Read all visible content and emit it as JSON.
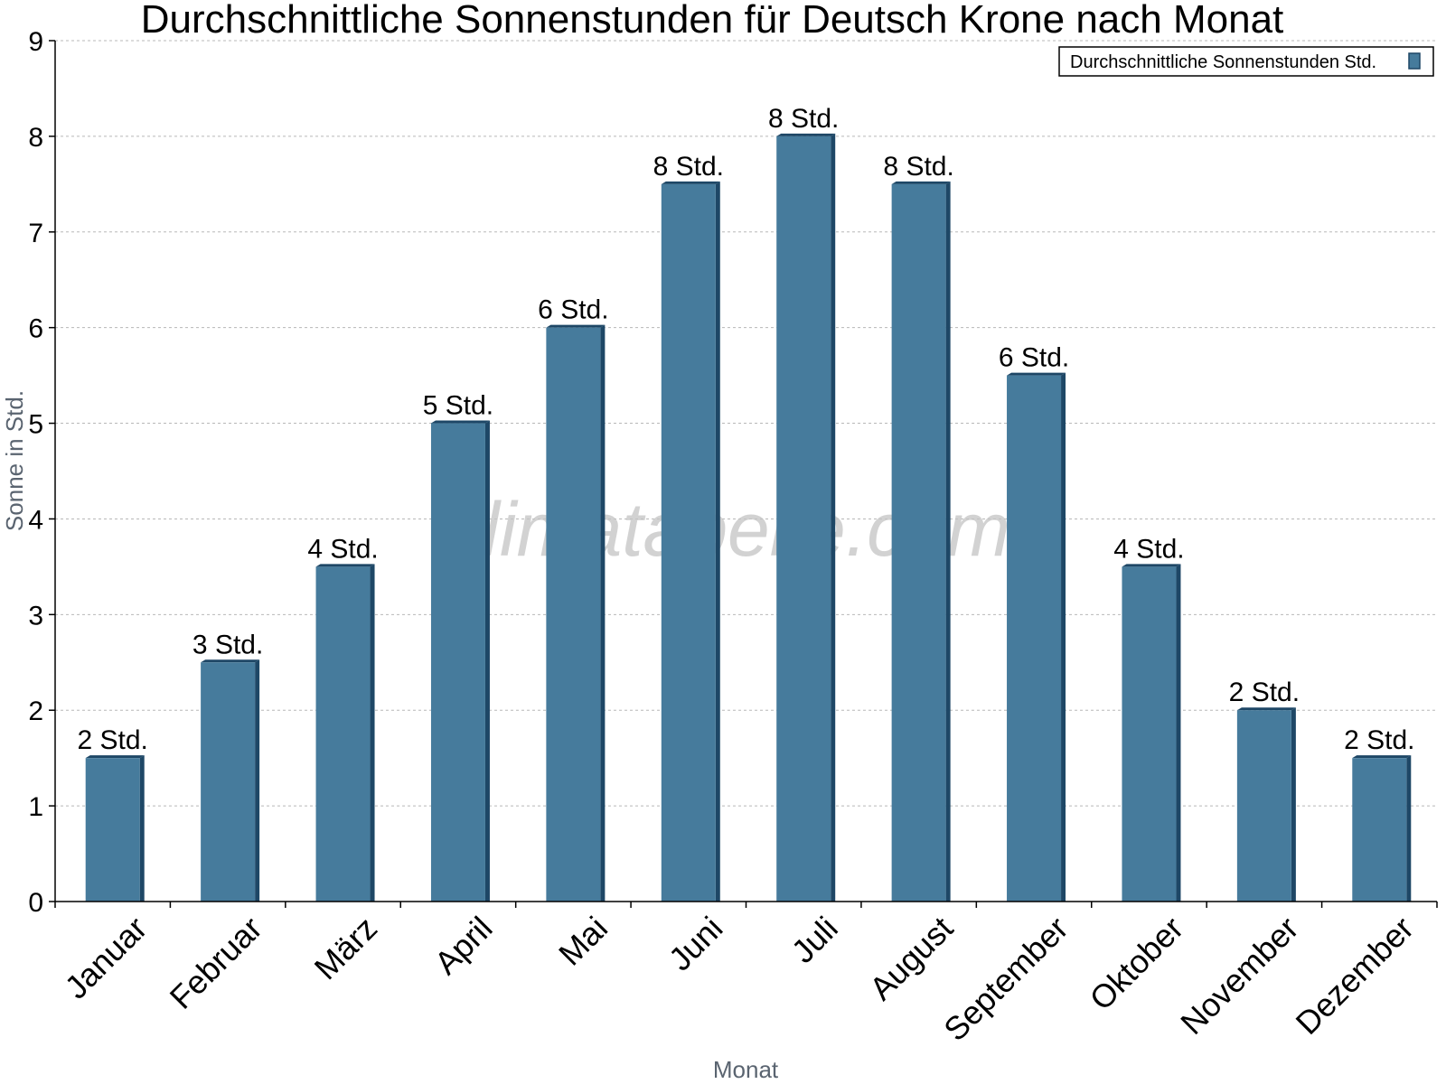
{
  "chart_data": {
    "type": "bar",
    "title": "Durchschnittliche Sonnenstunden für Deutsch Krone nach Monat",
    "xlabel": "Monat",
    "ylabel": "Sonne in Std.",
    "ylim": [
      0,
      9
    ],
    "yticks": [
      0,
      1,
      2,
      3,
      4,
      5,
      6,
      7,
      8,
      9
    ],
    "categories": [
      "Januar",
      "Februar",
      "März",
      "April",
      "Mai",
      "Juni",
      "Juli",
      "August",
      "September",
      "Oktober",
      "November",
      "Dezember"
    ],
    "series": [
      {
        "name": "Durchschnittliche Sonnenstunden Std.",
        "color": "#467b9c",
        "values": [
          1.5,
          2.5,
          3.5,
          5,
          6,
          7.5,
          8,
          7.5,
          5.5,
          3.5,
          2,
          1.5
        ],
        "labels": [
          "2 Std.",
          "3 Std.",
          "4 Std.",
          "5 Std.",
          "6 Std.",
          "8 Std.",
          "8 Std.",
          "8 Std.",
          "6 Std.",
          "4 Std.",
          "2 Std.",
          "2 Std."
        ]
      }
    ],
    "grid": true,
    "legend_position": "top-right",
    "watermark": "klimatabelle.com"
  }
}
